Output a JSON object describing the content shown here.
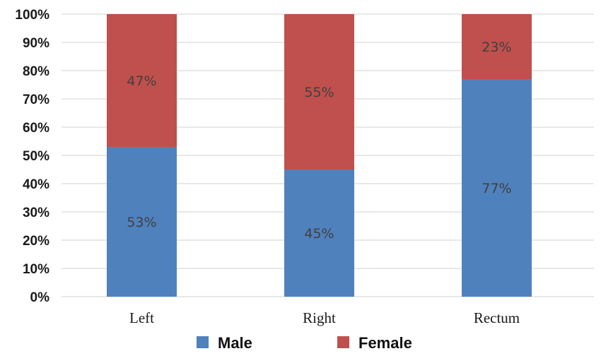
{
  "chart_data": {
    "type": "bar",
    "stacked": true,
    "categories": [
      "Left",
      "Right",
      "Rectum"
    ],
    "series": [
      {
        "name": "Male",
        "values": [
          53,
          45,
          77
        ],
        "labels": [
          "53%",
          "45%",
          "77%"
        ],
        "color": "#4F81BD"
      },
      {
        "name": "Female",
        "values": [
          47,
          55,
          23
        ],
        "labels": [
          "47%",
          "55%",
          "23%"
        ],
        "color": "#C0504D"
      }
    ],
    "yticks": [
      "0%",
      "10%",
      "20%",
      "30%",
      "40%",
      "50%",
      "60%",
      "70%",
      "80%",
      "90%",
      "100%"
    ],
    "ylim": [
      0,
      100
    ],
    "grid": true,
    "legend": "bottom"
  }
}
